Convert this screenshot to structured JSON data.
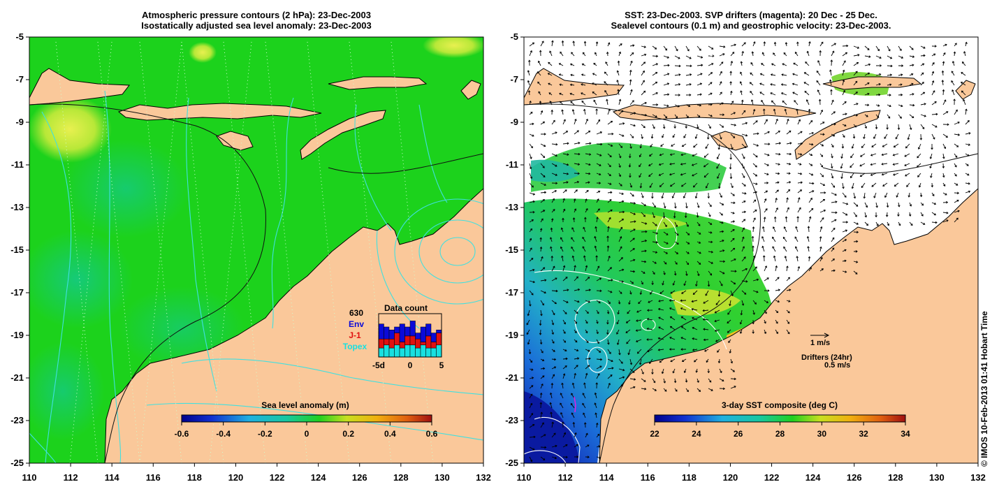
{
  "left_panel": {
    "title_line1": "Atmospheric pressure contours (2 hPa): 23-Dec-2003",
    "title_line2": "Isostatically adjusted sea level anomaly: 23-Dec-2003",
    "colorbar": {
      "label": "Sea level anomaly (m)",
      "ticks": [
        "-0.6",
        "-0.4",
        "-0.2",
        "0",
        "0.2",
        "0.4",
        "0.6"
      ],
      "range": [
        -0.6,
        0.6
      ]
    },
    "inset": {
      "title": "Data count",
      "total": "630",
      "legend": [
        {
          "label": "Env",
          "color": "#0a0ad8"
        },
        {
          "label": "J-1",
          "color": "#e01010"
        },
        {
          "label": "Topex",
          "color": "#18e0e0"
        }
      ],
      "x_ticks": [
        "-5d",
        "0",
        "5"
      ],
      "topex": [
        3,
        4,
        3,
        4,
        3,
        4,
        4,
        3,
        4,
        3,
        3,
        4
      ],
      "j1": [
        3,
        2,
        3,
        4,
        2,
        3,
        3,
        3,
        1,
        4,
        2,
        4
      ],
      "env": [
        5,
        4,
        3,
        2,
        6,
        3,
        5,
        2,
        5,
        4,
        3,
        1
      ]
    }
  },
  "right_panel": {
    "title_line1": "SST: 23-Dec-2003. SVP drifters (magenta): 20 Dec - 25 Dec.",
    "title_line2": "Sealevel contours (0.1 m) and geostrophic velocity: 23-Dec-2003.",
    "colorbar": {
      "label": "3-day SST composite (deg C)",
      "ticks": [
        "22",
        "24",
        "26",
        "28",
        "30",
        "32",
        "34"
      ],
      "range": [
        22,
        34
      ]
    },
    "velocity_legend": "1 m/s",
    "drifter_legend_title": "Drifters (24hr)",
    "drifter_legend_scale": "0.5 m/s",
    "drifter_symbol": ">"
  },
  "axes": {
    "lon_ticks": [
      "110",
      "112",
      "114",
      "116",
      "118",
      "120",
      "122",
      "124",
      "126",
      "128",
      "130",
      "132"
    ],
    "lat_ticks": [
      "-5",
      "-7",
      "-9",
      "-11",
      "-13",
      "-15",
      "-17",
      "-19",
      "-21",
      "-23",
      "-25"
    ],
    "lon_range": [
      110,
      132
    ],
    "lat_range": [
      -25,
      -5
    ]
  },
  "colors": {
    "land": "#fac89a",
    "ocean_green": "#1cd21c",
    "contour_cyan": "#40e0e0"
  },
  "credit": "© IMOS 10-Feb-2013 01:41 Hobart Time"
}
